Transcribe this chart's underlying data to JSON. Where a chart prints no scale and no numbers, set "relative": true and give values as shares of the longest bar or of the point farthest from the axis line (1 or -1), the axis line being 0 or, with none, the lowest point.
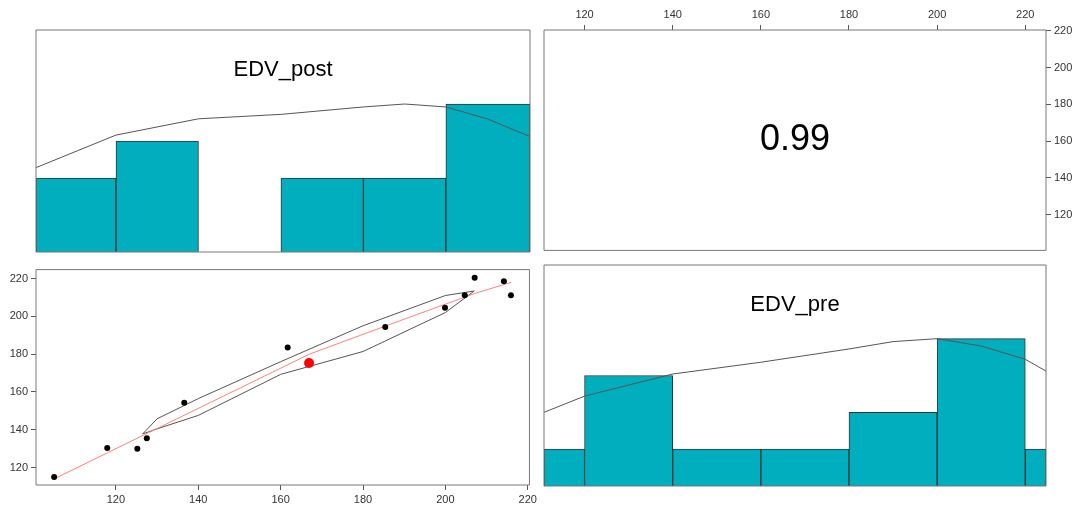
{
  "chart_data": [
    {
      "type": "histogram",
      "title": "EDV_post",
      "relative": true,
      "bins": [
        100.6,
        120,
        140,
        160,
        180,
        200,
        220.4
      ],
      "values": [
        0.5,
        0.75,
        0,
        0.5,
        0.5,
        1
      ],
      "color": "#00aebd",
      "xlim": [
        100.6,
        220.4
      ],
      "tick_labels": false,
      "series": [
        {
          "type": "line",
          "color": "#555555",
          "x": [
            100.6,
            120,
            140,
            160,
            180,
            190,
            200,
            210,
            220.4
          ],
          "values": [
            0.57,
            0.79,
            0.9,
            0.93,
            0.98,
            1,
            0.98,
            0.9,
            0.78
          ]
        }
      ]
    },
    {
      "type": "scatter",
      "annotations": [
        "0.99"
      ],
      "xlim": [
        110.8,
        224.7
      ],
      "xticks": [
        120,
        140,
        160,
        180,
        200,
        220
      ],
      "ylim": [
        100.6,
        220.4
      ],
      "yticks": [
        120,
        140,
        160,
        180,
        200,
        220
      ]
    },
    {
      "type": "scatter",
      "xlim": [
        100.6,
        220.4
      ],
      "xticks": [
        120,
        140,
        160,
        180,
        200,
        220
      ],
      "ylim": [
        110.8,
        224.7
      ],
      "yticks": [
        120,
        140,
        160,
        180,
        200,
        220
      ],
      "series": [
        {
          "color": "#000000",
          "marker": "circle",
          "x": [
            105,
            117.9,
            125.2,
            127.5,
            136.6,
            161.7,
            185.4,
            199.9,
            204.7,
            207.1,
            214.2,
            215.9
          ],
          "values": [
            115,
            130.3,
            130,
            135.5,
            154.3,
            183.5,
            194.4,
            204.5,
            211.1,
            220.4,
            218.6,
            211.1
          ]
        },
        {
          "color": "#ff0000",
          "marker": "circle",
          "x": [
            166.9
          ],
          "values": [
            175.3
          ]
        },
        {
          "type": "line",
          "marker": "none",
          "color": "#ff8080",
          "x": [
            105,
            127,
            167,
            185,
            207,
            216
          ],
          "values": [
            114,
            137.5,
            180,
            194.5,
            212,
            218
          ]
        },
        {
          "type": "line",
          "marker": "none",
          "color": "#555555",
          "x": [
            126.5,
            130,
            140,
            160,
            180,
            200,
            207
          ],
          "values": [
            137.8,
            145.8,
            156.5,
            176,
            195,
            211,
            213.4
          ]
        },
        {
          "type": "line",
          "marker": "none",
          "color": "#555555",
          "x": [
            126.5,
            130,
            140,
            160,
            180,
            200,
            207
          ],
          "values": [
            137.8,
            140.5,
            147.6,
            169.3,
            181.4,
            202,
            213.4
          ]
        }
      ]
    },
    {
      "type": "histogram",
      "title": "EDV_pre",
      "relative": true,
      "bins": [
        110.8,
        120,
        140,
        160,
        180,
        200,
        220,
        224.7
      ],
      "values": [
        0.25,
        0.75,
        0.25,
        0.25,
        0.5,
        1,
        0.25
      ],
      "color": "#00aebd",
      "xlim": [
        110.8,
        224.7
      ],
      "tick_labels": false,
      "series": [
        {
          "type": "line",
          "color": "#555555",
          "x": [
            110.8,
            120,
            140,
            160,
            180,
            190,
            200,
            210,
            220,
            224.7
          ],
          "values": [
            0.5,
            0.61,
            0.76,
            0.84,
            0.93,
            0.98,
            1,
            0.95,
            0.86,
            0.78
          ]
        }
      ]
    }
  ]
}
